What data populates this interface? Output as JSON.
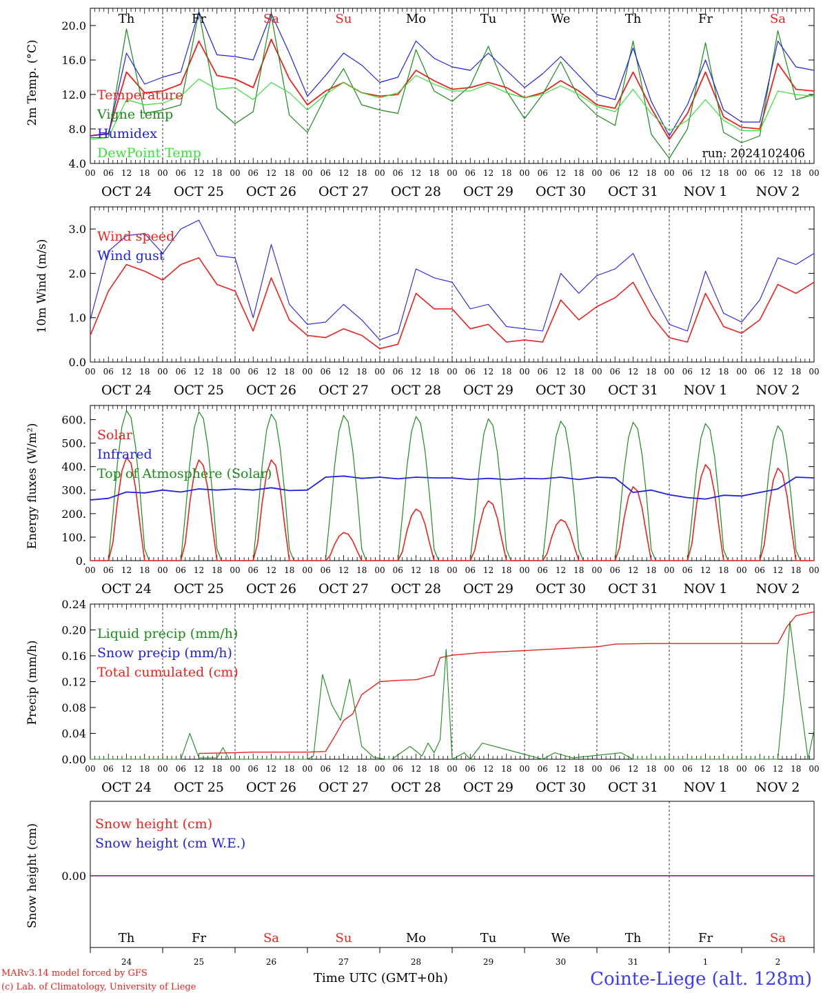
{
  "chart_data": [
    {
      "type": "line",
      "ylabel": "2m Temp. (°C)",
      "ylim": [
        4,
        22
      ],
      "yticks": [
        "4.0",
        "8.0",
        "12.0",
        "16.0",
        "20.0"
      ],
      "x_hours": [
        0,
        6,
        12,
        18,
        24,
        30,
        36,
        42,
        48,
        54,
        60,
        66,
        72,
        78,
        84,
        90,
        96,
        102,
        108,
        114,
        120,
        126,
        132,
        138,
        144,
        150,
        156,
        162,
        168,
        174,
        180,
        186,
        192,
        198,
        204,
        210,
        216,
        222,
        228,
        234,
        240
      ],
      "legend": [
        "Temperature",
        "Vigne temp",
        "Humidex",
        "DewPoint Temp"
      ],
      "legend_colors": [
        "#e8231f",
        "#1a8a1a",
        "#1f1fe0",
        "#36e036"
      ],
      "annotation": "run: 2024102406",
      "series": [
        {
          "name": "Temperature",
          "color": "#e8231f",
          "values": [
            7.2,
            7.5,
            14.6,
            12.2,
            12.4,
            13.2,
            18.2,
            14.2,
            13.8,
            12.8,
            18.4,
            13.8,
            10.8,
            12.4,
            13.4,
            12.2,
            11.8,
            12.0,
            14.8,
            13.6,
            12.6,
            12.8,
            13.4,
            12.8,
            11.6,
            12.2,
            13.6,
            12.4,
            10.8,
            10.4,
            14.6,
            10.4,
            6.8,
            9.8,
            14.6,
            9.4,
            8.2,
            8.0,
            15.6,
            12.6,
            12.4
          ]
        },
        {
          "name": "Vigne temp",
          "color": "#1a8a1a",
          "values": [
            7.0,
            7.0,
            19.6,
            9.8,
            10.2,
            10.8,
            21.6,
            10.4,
            8.6,
            10.0,
            21.2,
            9.6,
            7.6,
            11.8,
            15.0,
            10.8,
            10.2,
            9.8,
            17.2,
            12.4,
            11.2,
            13.0,
            17.6,
            12.4,
            9.2,
            12.0,
            15.8,
            11.6,
            9.6,
            8.4,
            18.2,
            7.4,
            4.6,
            8.0,
            18.0,
            7.6,
            6.4,
            7.2,
            19.4,
            11.4,
            12.0
          ]
        },
        {
          "name": "Humidex",
          "color": "#1f1fe0",
          "values": [
            7.2,
            7.4,
            16.8,
            13.2,
            14.0,
            14.6,
            21.6,
            16.6,
            16.4,
            16.0,
            21.4,
            16.8,
            11.8,
            14.2,
            16.8,
            15.4,
            13.4,
            14.0,
            18.2,
            16.2,
            15.2,
            14.8,
            16.8,
            14.8,
            12.8,
            14.4,
            16.4,
            14.2,
            12.0,
            11.4,
            17.4,
            11.2,
            7.2,
            10.8,
            16.0,
            10.2,
            8.8,
            8.8,
            18.2,
            15.2,
            14.8
          ]
        },
        {
          "name": "DewPoint Temp",
          "color": "#36e036",
          "values": [
            6.8,
            7.0,
            11.4,
            10.8,
            11.0,
            11.8,
            13.8,
            12.6,
            12.8,
            11.4,
            13.4,
            12.2,
            10.2,
            12.0,
            13.4,
            12.2,
            11.6,
            12.2,
            14.2,
            13.2,
            12.4,
            12.4,
            13.2,
            12.2,
            11.6,
            12.0,
            13.0,
            12.0,
            10.6,
            10.0,
            12.6,
            9.8,
            7.8,
            9.0,
            11.4,
            9.0,
            7.8,
            7.8,
            12.4,
            12.0,
            11.8
          ]
        }
      ]
    },
    {
      "type": "line",
      "ylabel": "10m Wind (m/s)",
      "ylim": [
        0,
        3.5
      ],
      "yticks": [
        "0.0",
        "1.0",
        "2.0",
        "3.0"
      ],
      "x_hours": [
        0,
        6,
        12,
        18,
        24,
        30,
        36,
        42,
        48,
        54,
        60,
        66,
        72,
        78,
        84,
        90,
        96,
        102,
        108,
        114,
        120,
        126,
        132,
        138,
        144,
        150,
        156,
        162,
        168,
        174,
        180,
        186,
        192,
        198,
        204,
        210,
        216,
        222,
        228,
        234,
        240
      ],
      "legend": [
        "Wind speed",
        "Wind gust"
      ],
      "legend_colors": [
        "#e8231f",
        "#1f1fe0"
      ],
      "series": [
        {
          "name": "Wind speed",
          "color": "#e8231f",
          "values": [
            0.6,
            1.6,
            2.2,
            2.05,
            1.85,
            2.2,
            2.35,
            1.75,
            1.6,
            0.7,
            1.9,
            0.95,
            0.6,
            0.55,
            0.75,
            0.6,
            0.3,
            0.4,
            1.55,
            1.2,
            1.2,
            0.75,
            0.85,
            0.45,
            0.5,
            0.45,
            1.4,
            0.95,
            1.25,
            1.45,
            1.8,
            1.05,
            0.55,
            0.45,
            1.55,
            0.8,
            0.65,
            0.95,
            1.75,
            1.55,
            1.8
          ]
        },
        {
          "name": "Wind gust",
          "color": "#1f1fe0",
          "values": [
            0.95,
            2.5,
            2.85,
            2.9,
            2.45,
            3.0,
            3.2,
            2.4,
            2.35,
            1.0,
            2.65,
            1.3,
            0.85,
            0.9,
            1.3,
            0.95,
            0.5,
            0.65,
            2.1,
            1.9,
            1.8,
            1.2,
            1.3,
            0.8,
            0.75,
            0.7,
            2.0,
            1.55,
            1.95,
            2.1,
            2.45,
            1.6,
            0.85,
            0.7,
            2.05,
            1.1,
            0.9,
            1.4,
            2.35,
            2.2,
            2.45
          ]
        }
      ]
    },
    {
      "type": "line",
      "ylabel": "Energy fluxes (W/m²)",
      "ylim": [
        0,
        660
      ],
      "yticks": [
        "0.",
        "100.",
        "200.",
        "300.",
        "400.",
        "500.",
        "600."
      ],
      "legend": [
        "Solar",
        "Infrared",
        "Top of Atmosphere (Solar)"
      ],
      "legend_colors": [
        "#e8231f",
        "#1f1fe0",
        "#1a8a1a"
      ],
      "solar_peaks": [
        440,
        430,
        430,
        120,
        220,
        255,
        175,
        315,
        410,
        395
      ],
      "toa_peaks": [
        640,
        635,
        625,
        620,
        615,
        605,
        595,
        590,
        585,
        575
      ],
      "infrared": {
        "x_hours": [
          0,
          6,
          12,
          18,
          24,
          30,
          36,
          42,
          48,
          54,
          60,
          66,
          72,
          78,
          84,
          90,
          96,
          102,
          108,
          114,
          120,
          126,
          132,
          138,
          144,
          150,
          156,
          162,
          168,
          174,
          180,
          186,
          192,
          198,
          204,
          210,
          216,
          222,
          228,
          234,
          240
        ],
        "values": [
          258,
          265,
          292,
          288,
          300,
          292,
          305,
          300,
          305,
          300,
          310,
          298,
          300,
          355,
          360,
          350,
          355,
          348,
          355,
          352,
          352,
          345,
          350,
          345,
          350,
          348,
          355,
          345,
          355,
          352,
          290,
          300,
          280,
          268,
          262,
          278,
          275,
          290,
          305,
          355,
          352
        ]
      }
    },
    {
      "type": "line",
      "ylabel": "Precip (mm/h)",
      "ylim": [
        0,
        0.24
      ],
      "yticks": [
        "0.00",
        "0.04",
        "0.08",
        "0.12",
        "0.16",
        "0.20",
        "0.24"
      ],
      "legend": [
        "Liquid precip (mm/h)",
        "Snow precip (mm/h)",
        "Total cumulated (cm)"
      ],
      "legend_colors": [
        "#1a8a1a",
        "#1f1fe0",
        "#e8231f"
      ],
      "series": [
        {
          "name": "Total cumulated (cm)",
          "color": "#e8231f",
          "x_hours": [
            0,
            33,
            36,
            48,
            54,
            60,
            66,
            72,
            78,
            81,
            84,
            87,
            90,
            96,
            102,
            108,
            114,
            116,
            120,
            130,
            144,
            156,
            168,
            174,
            186,
            198,
            222,
            228,
            231,
            234,
            240
          ],
          "values": [
            null,
            null,
            0.009,
            0.01,
            0.011,
            0.011,
            0.011,
            0.011,
            0.012,
            0.035,
            0.06,
            0.07,
            0.1,
            0.12,
            0.122,
            0.123,
            0.13,
            0.157,
            0.161,
            0.165,
            0.168,
            0.171,
            0.174,
            0.178,
            0.179,
            0.179,
            0.179,
            0.179,
            0.205,
            0.222,
            0.228
          ]
        },
        {
          "name": "Liquid precip (mm/h)",
          "color": "#1a8a1a",
          "x_hours": [
            0,
            30,
            33,
            36,
            42,
            44,
            46,
            48,
            72,
            74,
            77,
            80,
            83,
            86,
            90,
            94,
            98,
            100,
            106,
            110,
            112,
            114,
            116,
            118,
            120,
            124,
            126,
            130,
            150,
            154,
            160,
            176,
            180,
            228,
            230,
            232,
            234,
            238,
            240
          ],
          "values": [
            0,
            0,
            0.04,
            0.002,
            0.002,
            0.018,
            0.0,
            0.0,
            0.0,
            0.005,
            0.131,
            0.085,
            0.06,
            0.124,
            0.02,
            0.003,
            0.0,
            0.0,
            0.02,
            0.005,
            0.025,
            0.01,
            0.03,
            0.17,
            0.0,
            0.01,
            0.0,
            0.025,
            0.0,
            0.01,
            0.002,
            0.01,
            0.0,
            0.0,
            0.1,
            0.213,
            0.14,
            0.0,
            0.045
          ]
        }
      ]
    },
    {
      "type": "line",
      "ylabel": "Snow height (cm)",
      "yticks": [
        "0.00"
      ],
      "legend": [
        "Snow height (cm)",
        "Snow height (cm W.E.)"
      ],
      "legend_colors": [
        "#e8231f",
        "#1f1fe0"
      ],
      "series": [
        {
          "name": "Snow height (cm)",
          "color": "#8a2a8a",
          "values": [
            0,
            0
          ]
        }
      ]
    }
  ],
  "day_names": [
    "Th",
    "Fr",
    "Sa",
    "Su",
    "Mo",
    "Tu",
    "We",
    "Th",
    "Fr",
    "Sa"
  ],
  "weekend_color": "#e8231f",
  "day_name_color": "#000000",
  "date_labels": [
    "OCT 24",
    "OCT 25",
    "OCT 26",
    "OCT 27",
    "OCT 28",
    "OCT 29",
    "OCT 30",
    "OCT 31",
    "NOV  1",
    "NOV  2"
  ],
  "hour_labels": [
    "00",
    "06",
    "12",
    "18"
  ],
  "last_hour_label": "00",
  "bottom_day_numbers": [
    "24",
    "25",
    "26",
    "27",
    "28",
    "29",
    "30",
    "31",
    "1",
    "2"
  ],
  "footer": {
    "model_line": "MARv3.14 model forced by GFS",
    "lab_line": "(c) Lab. of Climatology, University of Liege",
    "time_axis": "Time UTC (GMT+0h)",
    "station": "Cointe-Liege (alt. 128m)"
  }
}
